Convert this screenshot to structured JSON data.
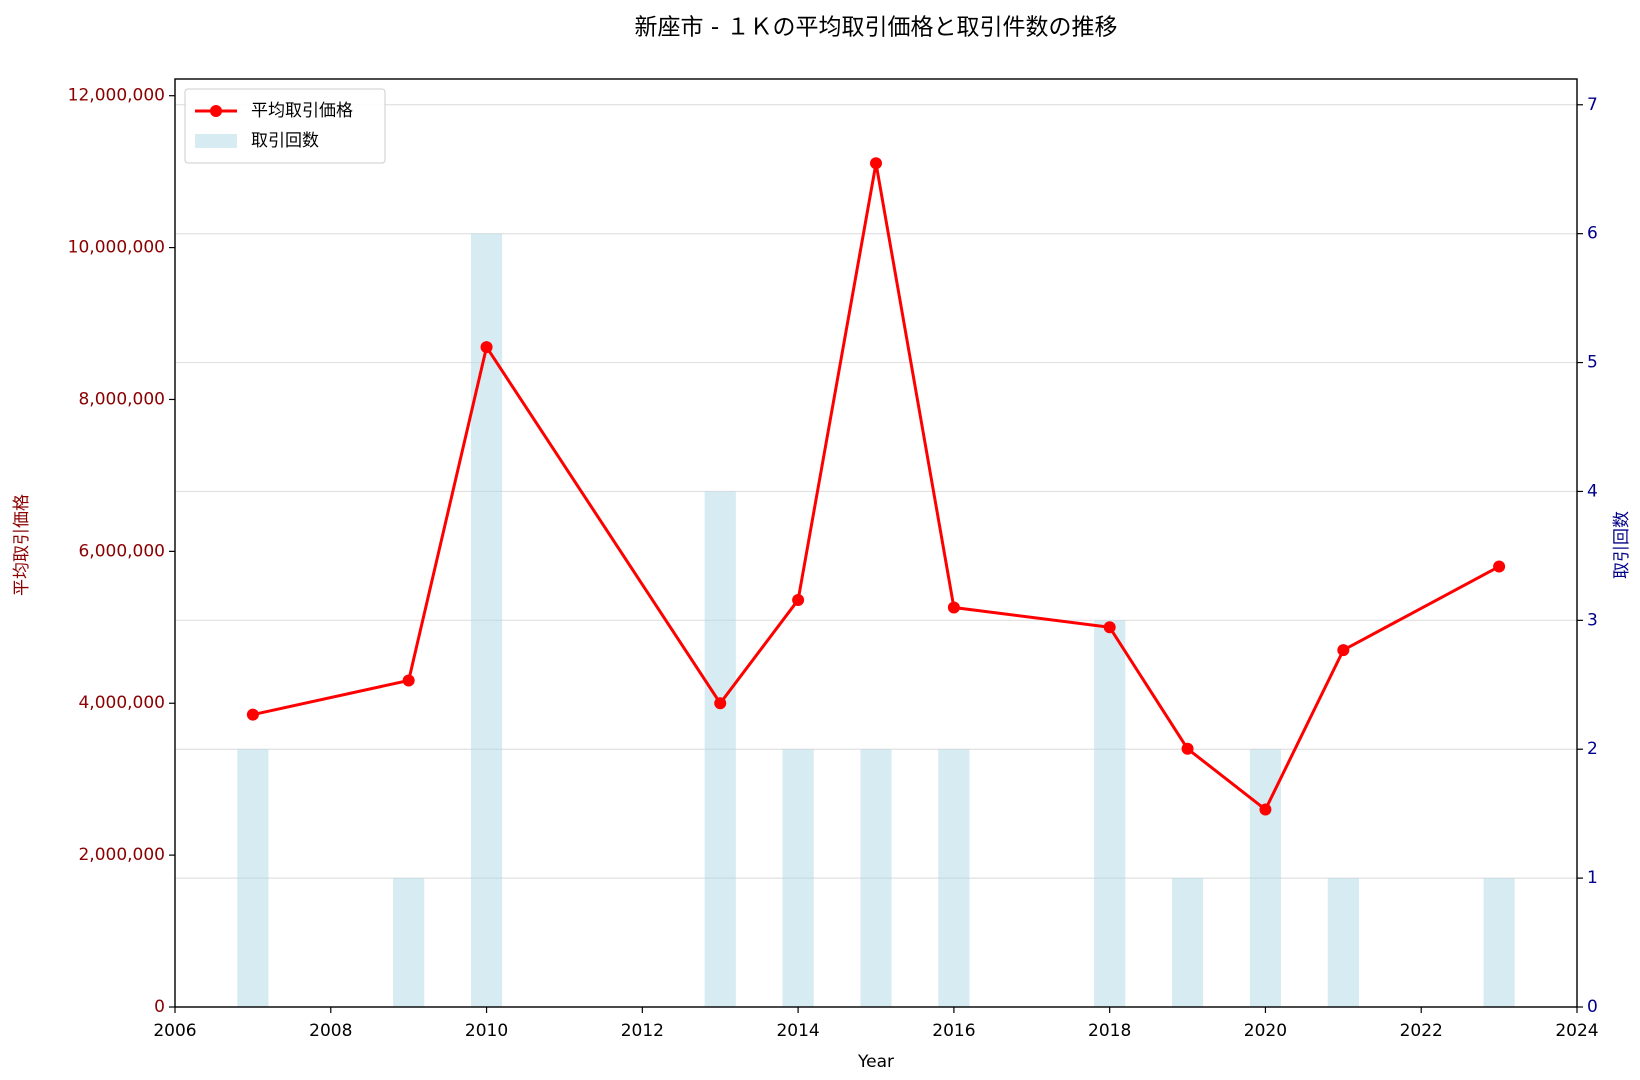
{
  "chart_data": {
    "type": "combo",
    "title": "新座市 - １Ｋの平均取引価格と取引件数の推移",
    "xlabel": "Year",
    "ylabel": "平均取引価格",
    "y2label": "取引回数",
    "x": [
      2007,
      2009,
      2010,
      2013,
      2014,
      2015,
      2016,
      2018,
      2019,
      2020,
      2021,
      2023
    ],
    "series": [
      {
        "name": "平均取引価格",
        "type": "line",
        "color": "#ff0000",
        "axis": "y",
        "values": [
          3850000,
          4300000,
          8690000,
          4000000,
          5360000,
          11110000,
          5260000,
          5000000,
          3400000,
          2600000,
          4700000,
          5800000
        ]
      },
      {
        "name": "取引回数",
        "type": "bar",
        "color": "#add8e6",
        "axis": "y2",
        "values": [
          2,
          1,
          6,
          4,
          2,
          2,
          2,
          3,
          1,
          2,
          1,
          1
        ]
      }
    ],
    "xlim": [
      2006,
      2024
    ],
    "xticks": [
      2006,
      2008,
      2010,
      2012,
      2014,
      2016,
      2018,
      2020,
      2022,
      2024
    ],
    "ylim": [
      0,
      12220000
    ],
    "yticks": [
      0,
      {
        "value": 2000000,
        "label": "2,000,000"
      },
      {
        "value": 4000000,
        "label": "4,000,000"
      },
      {
        "value": 6000000,
        "label": "6,000,000"
      },
      {
        "value": 8000000,
        "label": "8,000,000"
      },
      {
        "value": 10000000,
        "label": "10,000,000"
      },
      {
        "value": 12000000,
        "label": "12,000,000"
      }
    ],
    "y2lim": [
      0,
      7.2
    ],
    "y2ticks": [
      0,
      1,
      2,
      3,
      4,
      5,
      6,
      7
    ],
    "grid": true,
    "legend": "upper left"
  }
}
